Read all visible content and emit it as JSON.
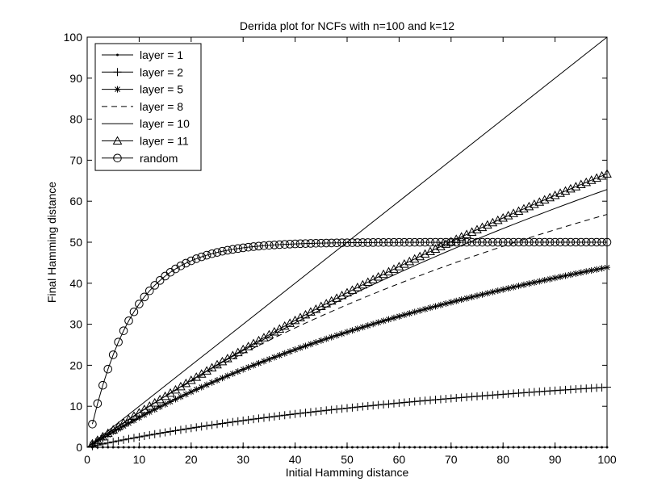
{
  "chart_data": {
    "type": "line",
    "title": "Derrida plot for NCFs with n=100 and k=12",
    "xlabel": "Initial Hamming distance",
    "ylabel": "Final Hamming distance",
    "xlim": [
      0,
      100
    ],
    "ylim": [
      0,
      100
    ],
    "xticks": [
      "0",
      "10",
      "20",
      "30",
      "40",
      "50",
      "60",
      "70",
      "80",
      "90",
      "100"
    ],
    "yticks": [
      "0",
      "10",
      "20",
      "30",
      "40",
      "50",
      "60",
      "70",
      "80",
      "90",
      "100"
    ],
    "grid": false,
    "legend_position": "top-left",
    "line_color": "#000000",
    "series": [
      {
        "name": "layer = 1",
        "marker": "dot",
        "dash": "solid",
        "model": {
          "kind": "saturating",
          "a": 0,
          "b": 50
        },
        "x_range": [
          1,
          100
        ],
        "x_step": 1
      },
      {
        "name": "layer = 2",
        "marker": "plus",
        "dash": "solid",
        "model": {
          "kind": "saturating",
          "a": 31.5,
          "b": 115
        },
        "x_range": [
          1,
          100
        ],
        "x_step": 1
      },
      {
        "name": "layer = 5",
        "marker": "star",
        "dash": "solid",
        "model": {
          "kind": "saturating",
          "a": 100,
          "b": 128
        },
        "x_range": [
          1,
          100
        ],
        "x_step": 1
      },
      {
        "name": "layer = 8",
        "marker": "none",
        "dash": "dashed",
        "model": {
          "kind": "saturating",
          "a": 155,
          "b": 173
        },
        "x_range": [
          1,
          100
        ],
        "x_step": 1
      },
      {
        "name": "layer = 10",
        "marker": "none",
        "dash": "solid",
        "model": {
          "kind": "saturating",
          "a": 220,
          "b": 250
        },
        "x_range": [
          1,
          100
        ],
        "x_step": 1
      },
      {
        "name": "layer = 11",
        "marker": "triangle",
        "dash": "solid",
        "model": {
          "kind": "saturating",
          "a": 290,
          "b": 335
        },
        "x_range": [
          1,
          100
        ],
        "x_step": 1
      },
      {
        "name": "random",
        "marker": "circle",
        "dash": "solid",
        "model": {
          "kind": "random",
          "plateau": 50,
          "rate": 0.12
        },
        "x_range": [
          1,
          100
        ],
        "x_step": 1
      }
    ],
    "reference_line": {
      "from": [
        0,
        0
      ],
      "to": [
        100,
        100
      ]
    }
  }
}
